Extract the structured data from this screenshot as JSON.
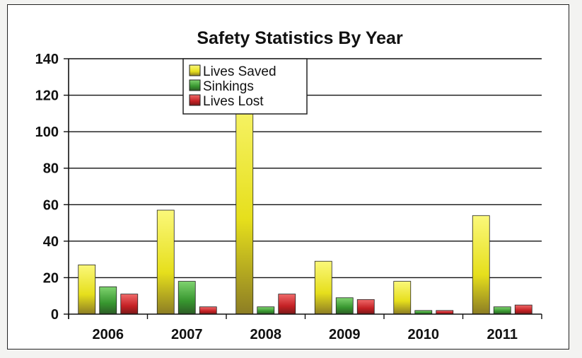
{
  "chart_data": {
    "type": "bar",
    "title": "Safety Statistics By Year",
    "xlabel": "",
    "ylabel": "",
    "categories": [
      "2006",
      "2007",
      "2008",
      "2009",
      "2010",
      "2011"
    ],
    "series": [
      {
        "name": "Lives Saved",
        "values": [
          27,
          57,
          130,
          29,
          18,
          54
        ],
        "color": "#e8e020"
      },
      {
        "name": "Sinkings",
        "values": [
          15,
          18,
          4,
          9,
          2,
          4
        ],
        "color": "#3f9a3a"
      },
      {
        "name": "Lives Lost",
        "values": [
          11,
          4,
          11,
          8,
          2,
          5
        ],
        "color": "#c42024"
      }
    ],
    "ylim": [
      0,
      140
    ],
    "yticks": [
      0,
      20,
      40,
      60,
      80,
      100,
      120,
      140
    ],
    "grid": true,
    "legend": "top-left"
  }
}
